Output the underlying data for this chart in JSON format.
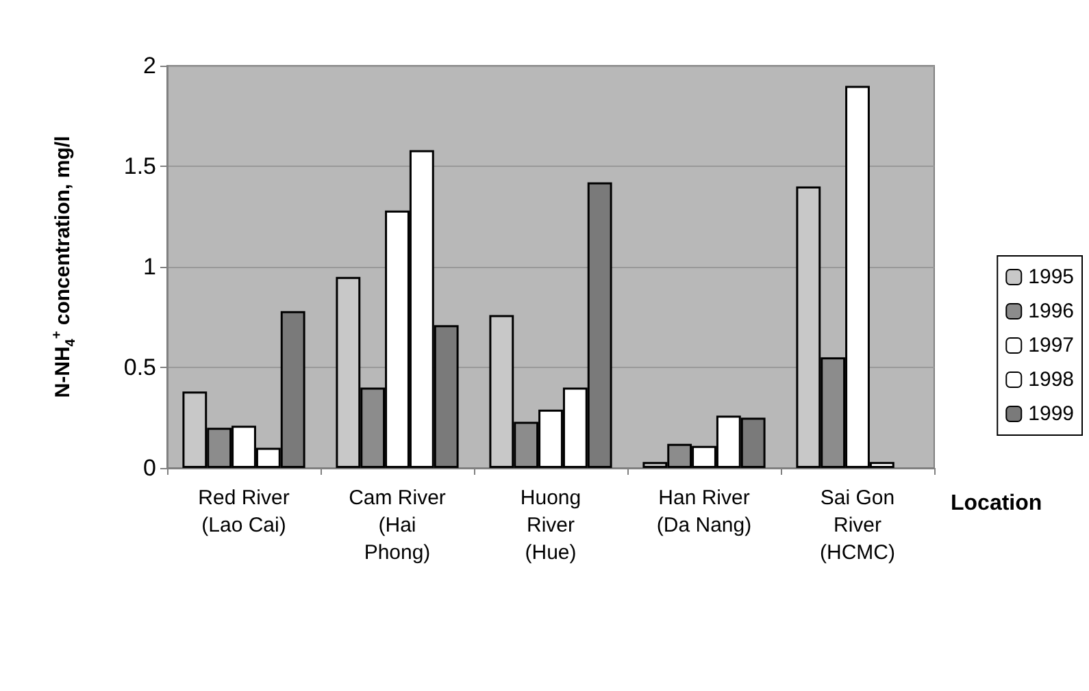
{
  "chart_data": {
    "type": "bar",
    "xlabel": "Location",
    "ylabel": "N-NH$_{4}$$^{+}$ concentration, mg/l",
    "categories": [
      "Red River\n(Lao Cai)",
      "Cam River\n(Hai\nPhong)",
      "Huong\nRiver\n(Hue)",
      "Han River\n(Da Nang)",
      "Sai Gon\nRiver\n(HCMC)"
    ],
    "series": [
      {
        "name": "1995",
        "color": "#c8c8c8",
        "values": [
          0.38,
          0.95,
          0.76,
          0.03,
          1.4
        ]
      },
      {
        "name": "1996",
        "color": "#8c8c8c",
        "values": [
          0.2,
          0.4,
          0.23,
          0.12,
          0.55
        ]
      },
      {
        "name": "1997",
        "color": "#ffffff",
        "values": [
          0.21,
          1.28,
          0.29,
          0.11,
          1.9
        ]
      },
      {
        "name": "1998",
        "color": "#ffffff",
        "values": [
          0.1,
          1.58,
          0.4,
          0.26,
          0.03
        ]
      },
      {
        "name": "1999",
        "color": "#7a7a7a",
        "values": [
          0.78,
          0.71,
          1.42,
          0.25,
          null
        ]
      }
    ],
    "ylim": [
      0,
      2
    ],
    "yticks": [
      0,
      0.5,
      1,
      1.5,
      2
    ],
    "grid": "y",
    "legend": "right"
  }
}
